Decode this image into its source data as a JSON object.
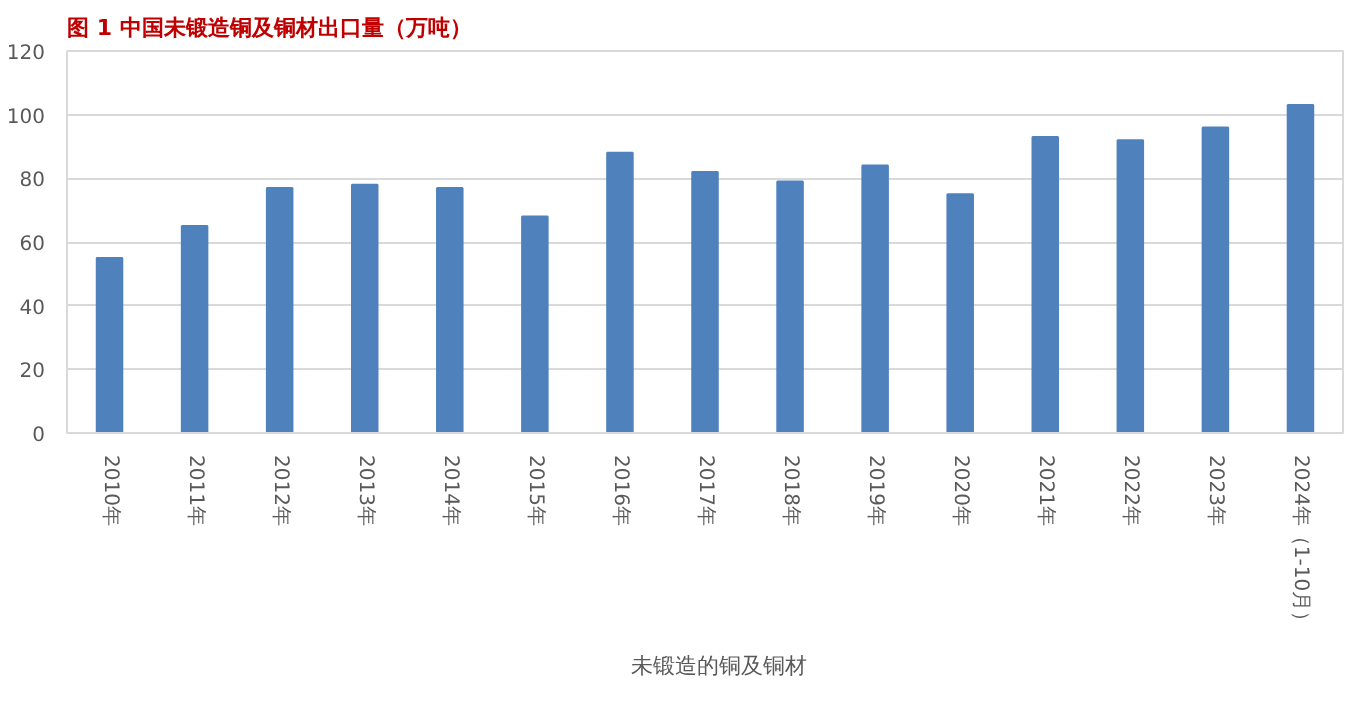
{
  "chart_data": {
    "type": "bar",
    "title": "图 1 中国未锻造铜及铜材出口量（万吨）",
    "categories": [
      "2010年",
      "2011年",
      "2012年",
      "2013年",
      "2014年",
      "2015年",
      "2016年",
      "2017年",
      "2018年",
      "2019年",
      "2020年",
      "2021年",
      "2022年",
      "2023年",
      "2024年（1-10月）"
    ],
    "series": [
      {
        "name": "未锻造的铜及铜材",
        "color": "#4f81bd",
        "values": [
          55,
          65,
          77,
          78,
          77,
          68,
          88,
          82,
          79,
          84,
          75,
          93,
          92,
          96,
          103
        ]
      }
    ],
    "ylim": [
      0,
      120
    ],
    "yticks": [
      0,
      20,
      40,
      60,
      80,
      100,
      120
    ],
    "grid": "y",
    "legend": "bottom"
  }
}
